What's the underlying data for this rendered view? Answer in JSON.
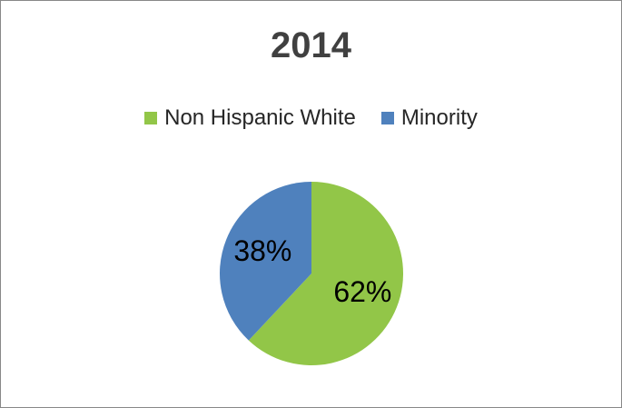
{
  "chart_data": {
    "type": "pie",
    "title": "2014",
    "legend_position": "top",
    "slices": [
      {
        "name": "Non Hispanic White",
        "value": 62,
        "label": "62%",
        "color": "#92c648"
      },
      {
        "name": "Minority",
        "value": 38,
        "label": "38%",
        "color": "#4f81bd"
      }
    ]
  }
}
